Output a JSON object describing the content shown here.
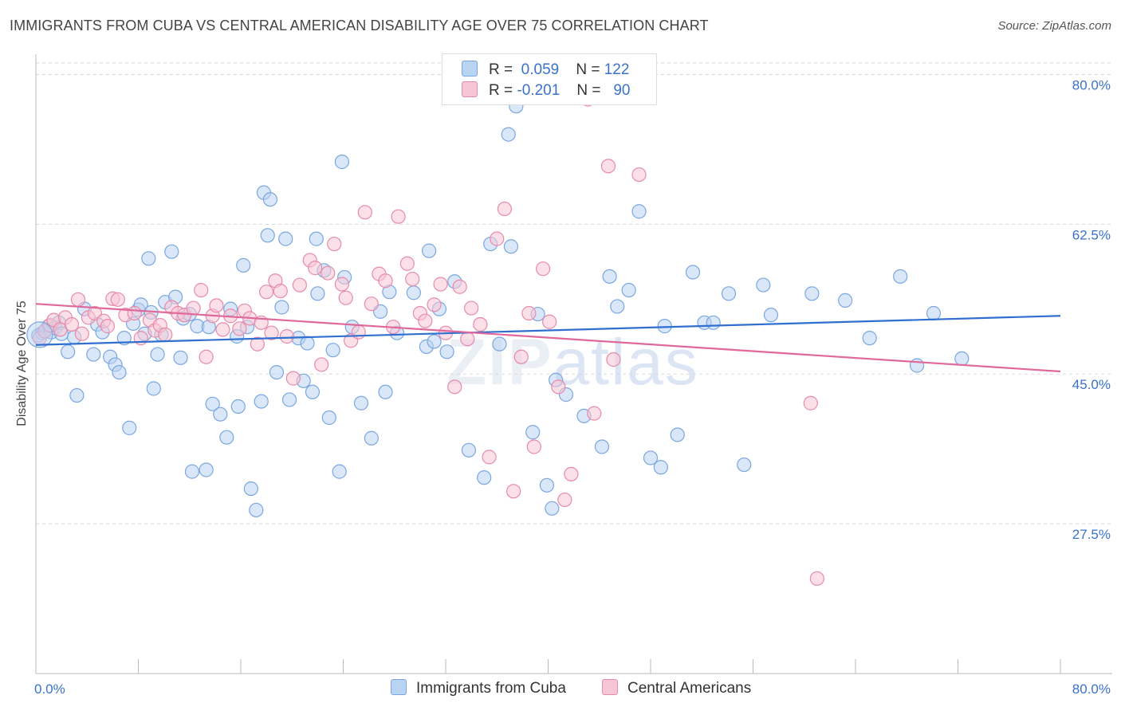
{
  "title": "IMMIGRANTS FROM CUBA VS CENTRAL AMERICAN DISABILITY AGE OVER 75 CORRELATION CHART",
  "source": "Source: ZipAtlas.com",
  "watermark": {
    "zip": "ZIP",
    "atlas": "atlas"
  },
  "legend": {
    "rows": [
      {
        "r_label": "R =",
        "r_value": "0.059",
        "n_label": "N =",
        "n_value": "122",
        "fill": "#b9d3f3",
        "stroke": "#7aa7e0"
      },
      {
        "r_label": "R =",
        "r_value": "-0.201",
        "n_label": "N =",
        "n_value": "90",
        "fill": "#f7c6d6",
        "stroke": "#e88aab"
      }
    ]
  },
  "bottom_legend": [
    {
      "label": "Immigrants from Cuba",
      "fill": "#b9d3f3",
      "stroke": "#7aa7e0"
    },
    {
      "label": "Central Americans",
      "fill": "#f7c6d6",
      "stroke": "#e88aab"
    }
  ],
  "chart_data": {
    "type": "scatter",
    "title": "IMMIGRANTS FROM CUBA VS CENTRAL AMERICAN DISABILITY AGE OVER 75 CORRELATION CHART",
    "xlabel": "",
    "ylabel": "Disability Age Over 75",
    "xlim": [
      0,
      80
    ],
    "ylim": [
      10,
      82
    ],
    "x_tick_labels": [
      "0.0%",
      "80.0%"
    ],
    "y_ticks": [
      27.5,
      45.0,
      62.5,
      80.0
    ],
    "y_tick_labels": [
      "27.5%",
      "45.0%",
      "62.5%",
      "80.0%"
    ],
    "grid": true,
    "legend_position": "top-center",
    "series": [
      {
        "name": "Immigrants from Cuba",
        "color": "#7aa7e0",
        "fill": "#b9d3f3",
        "trend": {
          "x": [
            0,
            80
          ],
          "y": [
            48.4,
            51.8
          ]
        },
        "points": [
          [
            0.2,
            49.5
          ],
          [
            0.5,
            49.8
          ],
          [
            0.8,
            50.2
          ],
          [
            1.0,
            50.6
          ],
          [
            1.2,
            49.9
          ],
          [
            1.5,
            50.4
          ],
          [
            1.8,
            51.0
          ],
          [
            2.0,
            49.7
          ],
          [
            2.5,
            47.6
          ],
          [
            3.0,
            49.3
          ],
          [
            3.2,
            42.5
          ],
          [
            3.8,
            52.6
          ],
          [
            4.5,
            47.3
          ],
          [
            4.8,
            50.8
          ],
          [
            5.2,
            49.9
          ],
          [
            5.8,
            47.0
          ],
          [
            6.2,
            46.1
          ],
          [
            6.5,
            45.2
          ],
          [
            6.9,
            49.2
          ],
          [
            7.3,
            38.7
          ],
          [
            7.6,
            50.9
          ],
          [
            8.0,
            52.5
          ],
          [
            8.2,
            53.1
          ],
          [
            8.5,
            49.7
          ],
          [
            8.8,
            58.5
          ],
          [
            9.0,
            52.2
          ],
          [
            9.2,
            43.3
          ],
          [
            9.5,
            47.3
          ],
          [
            9.8,
            49.6
          ],
          [
            10.1,
            53.4
          ],
          [
            10.6,
            59.3
          ],
          [
            10.9,
            54.0
          ],
          [
            11.5,
            51.5
          ],
          [
            11.3,
            46.9
          ],
          [
            12.0,
            52.0
          ],
          [
            12.2,
            33.6
          ],
          [
            12.6,
            50.6
          ],
          [
            13.3,
            33.8
          ],
          [
            13.5,
            50.5
          ],
          [
            13.8,
            41.5
          ],
          [
            14.4,
            40.3
          ],
          [
            14.9,
            37.6
          ],
          [
            15.2,
            52.6
          ],
          [
            15.7,
            49.4
          ],
          [
            15.8,
            41.2
          ],
          [
            16.2,
            57.7
          ],
          [
            16.5,
            50.5
          ],
          [
            16.8,
            31.6
          ],
          [
            17.2,
            29.1
          ],
          [
            17.6,
            41.8
          ],
          [
            17.8,
            66.2
          ],
          [
            18.1,
            61.2
          ],
          [
            18.3,
            65.4
          ],
          [
            18.8,
            45.2
          ],
          [
            19.2,
            52.8
          ],
          [
            19.5,
            60.8
          ],
          [
            19.8,
            42.0
          ],
          [
            20.5,
            49.2
          ],
          [
            20.9,
            44.2
          ],
          [
            21.2,
            48.6
          ],
          [
            21.6,
            42.9
          ],
          [
            21.9,
            60.8
          ],
          [
            22.0,
            54.4
          ],
          [
            22.5,
            57.1
          ],
          [
            22.9,
            39.9
          ],
          [
            23.2,
            47.8
          ],
          [
            23.7,
            33.6
          ],
          [
            23.9,
            69.8
          ],
          [
            24.1,
            56.3
          ],
          [
            24.7,
            50.5
          ],
          [
            25.4,
            41.6
          ],
          [
            26.2,
            37.5
          ],
          [
            26.9,
            52.3
          ],
          [
            27.3,
            42.9
          ],
          [
            27.6,
            54.6
          ],
          [
            28.2,
            49.8
          ],
          [
            29.5,
            54.5
          ],
          [
            30.5,
            48.2
          ],
          [
            30.7,
            59.4
          ],
          [
            31.1,
            48.8
          ],
          [
            31.5,
            52.6
          ],
          [
            32.1,
            47.6
          ],
          [
            32.7,
            55.8
          ],
          [
            33.8,
            36.1
          ],
          [
            35.0,
            32.9
          ],
          [
            35.5,
            60.2
          ],
          [
            36.2,
            48.5
          ],
          [
            36.9,
            73.0
          ],
          [
            37.1,
            59.9
          ],
          [
            37.5,
            76.3
          ],
          [
            38.8,
            38.2
          ],
          [
            39.2,
            52.0
          ],
          [
            39.9,
            32.0
          ],
          [
            40.3,
            29.3
          ],
          [
            40.6,
            44.3
          ],
          [
            41.4,
            42.6
          ],
          [
            42.8,
            40.1
          ],
          [
            44.2,
            36.5
          ],
          [
            44.8,
            56.4
          ],
          [
            45.4,
            52.9
          ],
          [
            46.3,
            54.8
          ],
          [
            47.1,
            64.0
          ],
          [
            48.0,
            35.2
          ],
          [
            48.8,
            34.1
          ],
          [
            49.1,
            50.6
          ],
          [
            50.1,
            37.9
          ],
          [
            51.3,
            56.9
          ],
          [
            52.2,
            51.0
          ],
          [
            52.9,
            51.0
          ],
          [
            54.1,
            54.4
          ],
          [
            55.3,
            34.4
          ],
          [
            56.8,
            55.4
          ],
          [
            57.4,
            51.9
          ],
          [
            60.6,
            54.4
          ],
          [
            63.2,
            53.6
          ],
          [
            65.1,
            49.2
          ],
          [
            67.5,
            56.4
          ],
          [
            68.8,
            46.0
          ],
          [
            70.1,
            52.1
          ],
          [
            72.3,
            46.8
          ]
        ]
      },
      {
        "name": "Central Americans",
        "color": "#e88aab",
        "fill": "#f7c6d6",
        "trend": {
          "x": [
            0,
            80
          ],
          "y": [
            53.2,
            45.3
          ]
        },
        "points": [
          [
            0.3,
            49.2
          ],
          [
            0.7,
            50.0
          ],
          [
            1.1,
            50.7
          ],
          [
            1.4,
            51.3
          ],
          [
            1.9,
            50.2
          ],
          [
            2.3,
            51.6
          ],
          [
            2.8,
            50.8
          ],
          [
            3.3,
            53.7
          ],
          [
            3.6,
            49.7
          ],
          [
            4.1,
            51.6
          ],
          [
            4.6,
            52.1
          ],
          [
            5.3,
            51.2
          ],
          [
            5.6,
            50.6
          ],
          [
            6.0,
            53.8
          ],
          [
            6.4,
            53.7
          ],
          [
            7.0,
            51.9
          ],
          [
            7.7,
            52.1
          ],
          [
            8.2,
            49.2
          ],
          [
            8.9,
            51.3
          ],
          [
            9.3,
            50.1
          ],
          [
            9.7,
            50.7
          ],
          [
            10.1,
            49.6
          ],
          [
            10.6,
            52.8
          ],
          [
            11.1,
            52.1
          ],
          [
            11.6,
            51.9
          ],
          [
            12.3,
            52.7
          ],
          [
            12.9,
            54.8
          ],
          [
            13.3,
            47.0
          ],
          [
            13.8,
            51.8
          ],
          [
            14.1,
            53.0
          ],
          [
            14.6,
            50.2
          ],
          [
            15.2,
            51.8
          ],
          [
            15.9,
            50.3
          ],
          [
            16.3,
            52.4
          ],
          [
            16.7,
            51.5
          ],
          [
            17.3,
            48.5
          ],
          [
            17.6,
            51.0
          ],
          [
            18.0,
            54.6
          ],
          [
            18.4,
            49.8
          ],
          [
            18.7,
            55.9
          ],
          [
            19.1,
            54.7
          ],
          [
            19.6,
            49.4
          ],
          [
            20.1,
            44.5
          ],
          [
            20.6,
            55.4
          ],
          [
            21.4,
            58.3
          ],
          [
            21.8,
            57.4
          ],
          [
            22.3,
            46.1
          ],
          [
            22.8,
            56.8
          ],
          [
            23.3,
            60.2
          ],
          [
            23.9,
            55.5
          ],
          [
            24.2,
            53.9
          ],
          [
            24.6,
            48.9
          ],
          [
            25.2,
            49.9
          ],
          [
            25.7,
            63.9
          ],
          [
            26.2,
            53.2
          ],
          [
            26.8,
            56.7
          ],
          [
            27.3,
            55.9
          ],
          [
            27.9,
            50.5
          ],
          [
            28.3,
            63.4
          ],
          [
            29.0,
            57.9
          ],
          [
            29.4,
            56.1
          ],
          [
            30.0,
            52.1
          ],
          [
            30.4,
            51.2
          ],
          [
            31.1,
            53.1
          ],
          [
            31.6,
            55.5
          ],
          [
            32.0,
            49.8
          ],
          [
            32.7,
            43.5
          ],
          [
            33.1,
            55.2
          ],
          [
            33.7,
            49.1
          ],
          [
            34.0,
            52.7
          ],
          [
            34.7,
            50.8
          ],
          [
            35.4,
            35.3
          ],
          [
            36.0,
            60.8
          ],
          [
            36.6,
            64.3
          ],
          [
            37.3,
            31.3
          ],
          [
            37.9,
            47.0
          ],
          [
            38.5,
            52.1
          ],
          [
            38.9,
            36.5
          ],
          [
            39.6,
            57.3
          ],
          [
            40.1,
            51.1
          ],
          [
            40.8,
            43.5
          ],
          [
            41.3,
            30.3
          ],
          [
            41.8,
            33.3
          ],
          [
            43.1,
            77.1
          ],
          [
            43.6,
            40.4
          ],
          [
            44.7,
            69.3
          ],
          [
            45.1,
            46.7
          ],
          [
            47.1,
            68.3
          ],
          [
            60.5,
            41.6
          ],
          [
            61.0,
            21.1
          ]
        ]
      }
    ]
  }
}
